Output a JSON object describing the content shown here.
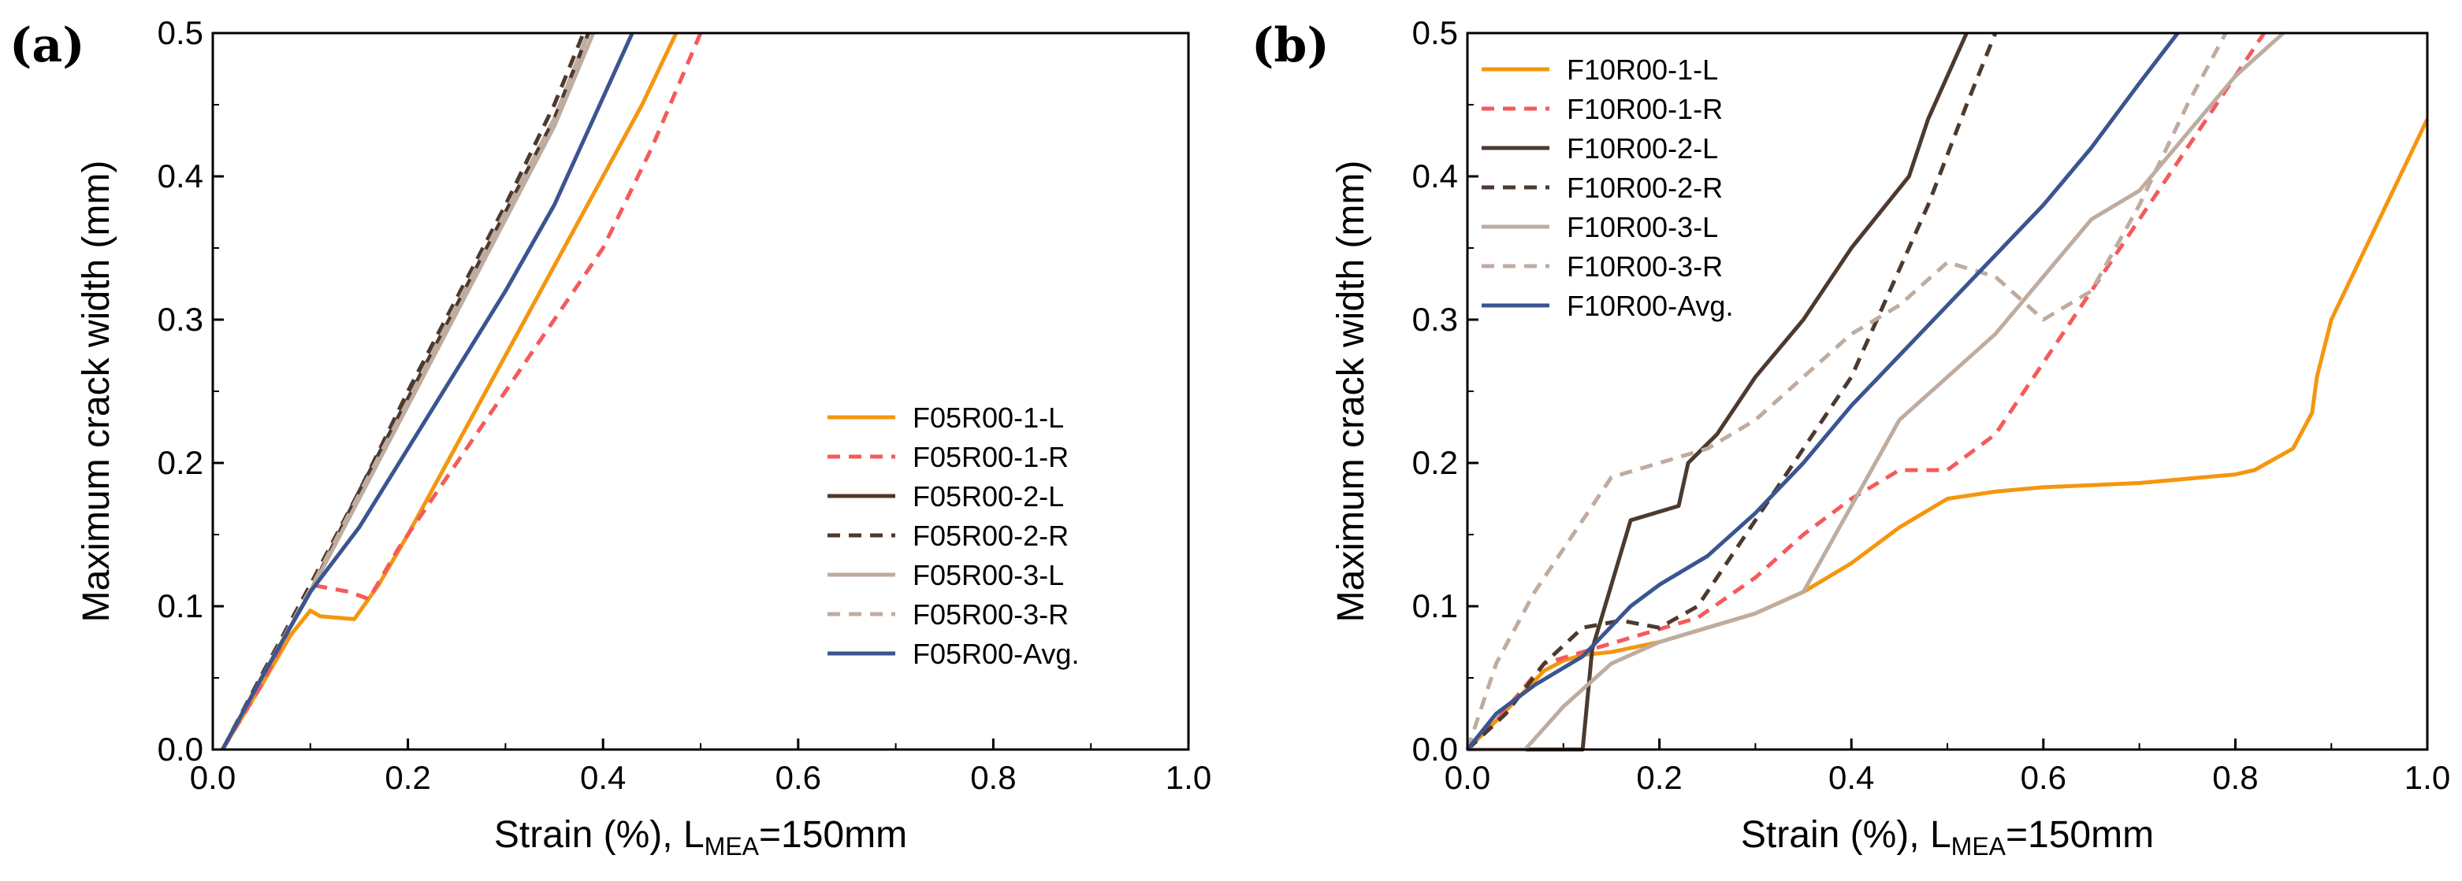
{
  "chart_data": [
    {
      "panel": "(a)",
      "type": "line",
      "xlabel": "Strain (%), L",
      "xlabel_sub": "MEA",
      "xlabel_suffix": "=150mm",
      "ylabel": "Maximum crack width (mm)",
      "xlim": [
        0.0,
        1.0
      ],
      "ylim": [
        0.0,
        0.5
      ],
      "xticks": [
        "0.0",
        "0.2",
        "0.4",
        "0.6",
        "0.8",
        "1.0"
      ],
      "yticks": [
        "0.0",
        "0.1",
        "0.2",
        "0.3",
        "0.4",
        "0.5"
      ],
      "grid": false,
      "legend_position": "right",
      "series": [
        {
          "name": "F05R00-1-L",
          "color": "#F5960F",
          "dash": "solid",
          "x": [
            0.01,
            0.05,
            0.08,
            0.1,
            0.11,
            0.145,
            0.17,
            0.2,
            0.24,
            0.28,
            0.32,
            0.36,
            0.4,
            0.44,
            0.475
          ],
          "y": [
            0.0,
            0.045,
            0.08,
            0.097,
            0.093,
            0.091,
            0.115,
            0.15,
            0.2,
            0.25,
            0.3,
            0.35,
            0.4,
            0.45,
            0.5
          ]
        },
        {
          "name": "F05R00-1-R",
          "color": "#F55A5A",
          "dash": "dash",
          "x": [
            0.01,
            0.05,
            0.09,
            0.1,
            0.14,
            0.16,
            0.19,
            0.23,
            0.27,
            0.31,
            0.35,
            0.4,
            0.45,
            0.5
          ],
          "y": [
            0.0,
            0.045,
            0.1,
            0.115,
            0.11,
            0.105,
            0.14,
            0.18,
            0.22,
            0.26,
            0.3,
            0.35,
            0.42,
            0.5
          ]
        },
        {
          "name": "F05R00-2-L",
          "color": "#4D3A2E",
          "dash": "solid",
          "x": [
            0.01,
            0.05,
            0.1,
            0.15,
            0.2,
            0.25,
            0.3,
            0.35,
            0.385
          ],
          "y": [
            0.0,
            0.05,
            0.11,
            0.18,
            0.245,
            0.31,
            0.375,
            0.44,
            0.5
          ]
        },
        {
          "name": "F05R00-2-R",
          "color": "#4D3A2E",
          "dash": "dash",
          "x": [
            0.01,
            0.05,
            0.1,
            0.15,
            0.2,
            0.25,
            0.3,
            0.35,
            0.38
          ],
          "y": [
            0.0,
            0.052,
            0.115,
            0.18,
            0.25,
            0.315,
            0.38,
            0.45,
            0.5
          ]
        },
        {
          "name": "F05R00-3-L",
          "color": "#BFACA0",
          "dash": "solid",
          "x": [
            0.01,
            0.05,
            0.1,
            0.15,
            0.2,
            0.25,
            0.3,
            0.35,
            0.39
          ],
          "y": [
            0.0,
            0.05,
            0.11,
            0.175,
            0.24,
            0.305,
            0.37,
            0.435,
            0.5
          ]
        },
        {
          "name": "F05R00-3-R",
          "color": "#BFACA0",
          "dash": "dash",
          "x": [
            0.01,
            0.05,
            0.1,
            0.15,
            0.2,
            0.25,
            0.3,
            0.35,
            0.385
          ],
          "y": [
            0.0,
            0.05,
            0.112,
            0.178,
            0.243,
            0.31,
            0.375,
            0.44,
            0.5
          ]
        },
        {
          "name": "F05R00-Avg.",
          "color": "#3A5590",
          "dash": "solid",
          "x": [
            0.01,
            0.05,
            0.1,
            0.15,
            0.2,
            0.25,
            0.3,
            0.35,
            0.4,
            0.43
          ],
          "y": [
            0.0,
            0.05,
            0.11,
            0.155,
            0.21,
            0.265,
            0.32,
            0.38,
            0.455,
            0.5
          ]
        }
      ]
    },
    {
      "panel": "(b)",
      "type": "line",
      "xlabel": "Strain (%), L",
      "xlabel_sub": "MEA",
      "xlabel_suffix": "=150mm",
      "ylabel": "Maximum crack width (mm)",
      "xlim": [
        0.0,
        1.0
      ],
      "ylim": [
        0.0,
        0.5
      ],
      "xticks": [
        "0.0",
        "0.2",
        "0.4",
        "0.6",
        "0.8",
        "1.0"
      ],
      "yticks": [
        "0.0",
        "0.1",
        "0.2",
        "0.3",
        "0.4",
        "0.5"
      ],
      "grid": false,
      "legend_position": "top-left",
      "series": [
        {
          "name": "F10R00-1-L",
          "color": "#F5960F",
          "dash": "solid",
          "x": [
            0.0,
            0.03,
            0.08,
            0.1,
            0.12,
            0.15,
            0.2,
            0.25,
            0.3,
            0.35,
            0.4,
            0.45,
            0.5,
            0.55,
            0.6,
            0.7,
            0.8,
            0.82,
            0.86,
            0.88,
            0.885,
            0.9,
            0.95,
            1.0
          ],
          "y": [
            0.0,
            0.02,
            0.055,
            0.062,
            0.066,
            0.068,
            0.075,
            0.085,
            0.095,
            0.11,
            0.13,
            0.155,
            0.175,
            0.18,
            0.183,
            0.186,
            0.192,
            0.195,
            0.21,
            0.235,
            0.26,
            0.3,
            0.37,
            0.44
          ]
        },
        {
          "name": "F10R00-1-R",
          "color": "#F55A5A",
          "dash": "dash",
          "x": [
            0.0,
            0.03,
            0.08,
            0.12,
            0.18,
            0.24,
            0.3,
            0.35,
            0.4,
            0.45,
            0.5,
            0.55,
            0.6,
            0.65,
            0.7,
            0.75,
            0.8,
            0.83
          ],
          "y": [
            0.0,
            0.02,
            0.06,
            0.068,
            0.08,
            0.092,
            0.12,
            0.15,
            0.175,
            0.195,
            0.195,
            0.22,
            0.27,
            0.32,
            0.37,
            0.42,
            0.47,
            0.5
          ]
        },
        {
          "name": "F10R00-2-L",
          "color": "#4D3A2E",
          "dash": "solid",
          "x": [
            0.0,
            0.12,
            0.13,
            0.17,
            0.22,
            0.23,
            0.26,
            0.3,
            0.35,
            0.4,
            0.46,
            0.48,
            0.5,
            0.52
          ],
          "y": [
            0.0,
            0.0,
            0.07,
            0.16,
            0.17,
            0.2,
            0.22,
            0.26,
            0.3,
            0.35,
            0.4,
            0.44,
            0.47,
            0.5
          ]
        },
        {
          "name": "F10R00-2-R",
          "color": "#4D3A2E",
          "dash": "dash",
          "x": [
            0.0,
            0.04,
            0.08,
            0.12,
            0.16,
            0.2,
            0.24,
            0.28,
            0.32,
            0.36,
            0.4,
            0.44,
            0.48,
            0.52,
            0.55
          ],
          "y": [
            0.0,
            0.025,
            0.06,
            0.085,
            0.09,
            0.085,
            0.1,
            0.14,
            0.18,
            0.22,
            0.26,
            0.32,
            0.38,
            0.45,
            0.5
          ]
        },
        {
          "name": "F10R00-3-L",
          "color": "#BFACA0",
          "dash": "solid",
          "x": [
            0.0,
            0.06,
            0.1,
            0.15,
            0.2,
            0.25,
            0.3,
            0.35,
            0.4,
            0.45,
            0.5,
            0.55,
            0.6,
            0.65,
            0.7,
            0.75,
            0.8,
            0.85
          ],
          "y": [
            0.0,
            0.0,
            0.03,
            0.06,
            0.075,
            0.085,
            0.095,
            0.11,
            0.17,
            0.23,
            0.26,
            0.29,
            0.33,
            0.37,
            0.39,
            0.43,
            0.47,
            0.5
          ]
        },
        {
          "name": "F10R00-3-R",
          "color": "#BFACA0",
          "dash": "dash",
          "x": [
            0.0,
            0.03,
            0.07,
            0.11,
            0.15,
            0.2,
            0.25,
            0.3,
            0.35,
            0.4,
            0.45,
            0.5,
            0.55,
            0.6,
            0.65,
            0.7,
            0.75,
            0.79
          ],
          "y": [
            0.0,
            0.06,
            0.11,
            0.15,
            0.19,
            0.2,
            0.21,
            0.23,
            0.26,
            0.29,
            0.31,
            0.34,
            0.33,
            0.3,
            0.32,
            0.38,
            0.45,
            0.5
          ]
        },
        {
          "name": "F10R00-Avg.",
          "color": "#3A5590",
          "dash": "solid",
          "x": [
            0.0,
            0.03,
            0.07,
            0.12,
            0.17,
            0.2,
            0.25,
            0.3,
            0.35,
            0.4,
            0.45,
            0.5,
            0.55,
            0.6,
            0.65,
            0.7,
            0.74
          ],
          "y": [
            0.0,
            0.025,
            0.045,
            0.065,
            0.1,
            0.115,
            0.135,
            0.165,
            0.2,
            0.24,
            0.275,
            0.31,
            0.345,
            0.38,
            0.42,
            0.465,
            0.5
          ]
        }
      ]
    }
  ]
}
